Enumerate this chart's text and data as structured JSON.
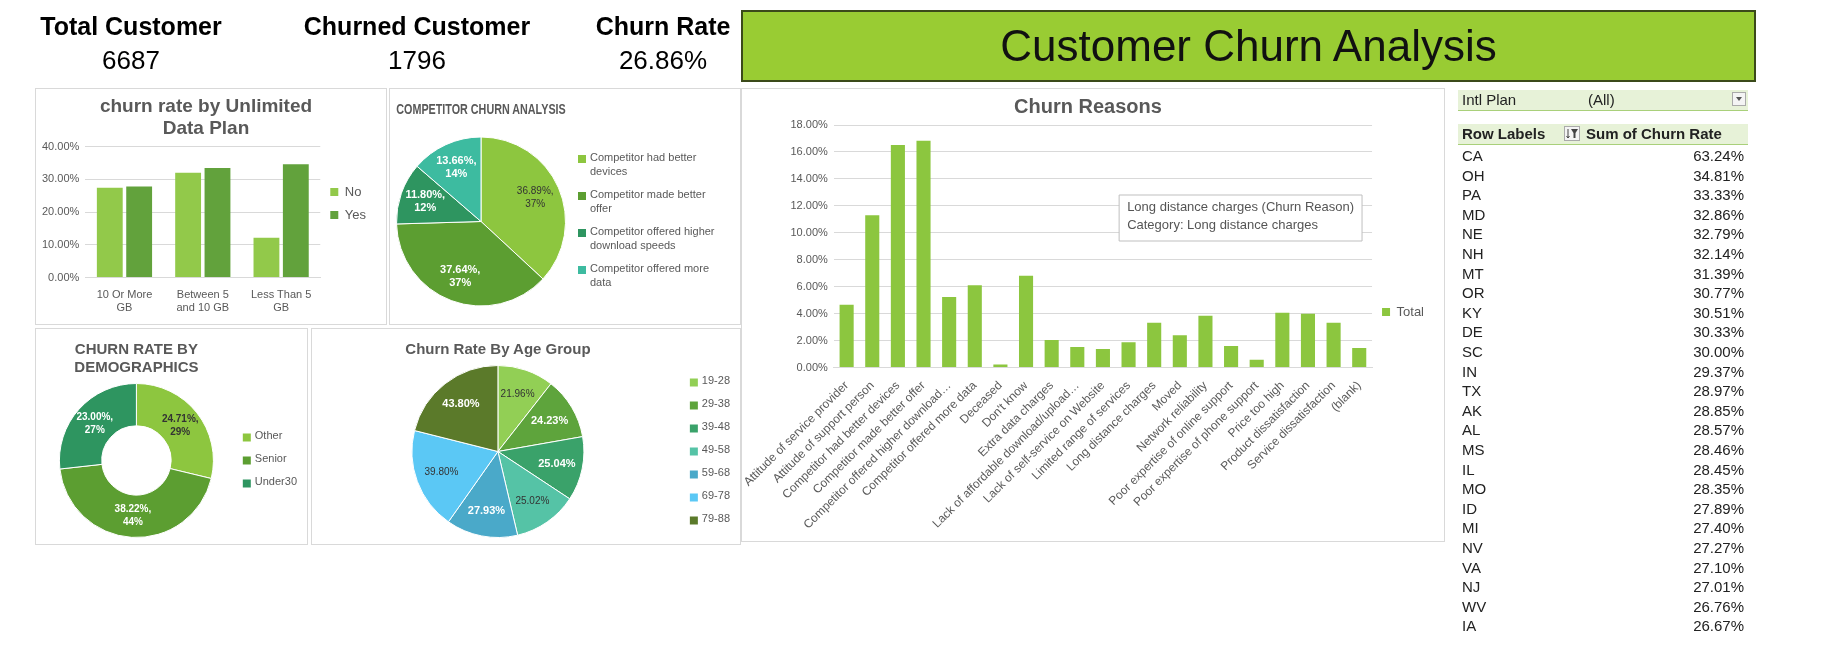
{
  "chart_data": [
    {
      "type": "other",
      "title": "Customer Churn Analysis",
      "annotations": [
        "Total Customer",
        "6687",
        "Churned Customer",
        "1796",
        "Churn Rate",
        "26.86%"
      ]
    },
    {
      "type": "bar",
      "title": "churn rate by Unlimited Data Plan",
      "categories": [
        "10 Or More GB",
        "Between 5 and 10 GB",
        "Less Than 5 GB"
      ],
      "series": [
        {
          "name": "No",
          "color": "#92c94a",
          "values": [
            27.4,
            32.0,
            12.2
          ]
        },
        {
          "name": "Yes",
          "color": "#62a23c",
          "values": [
            27.8,
            33.5,
            34.6
          ]
        }
      ],
      "ylim": [
        0,
        40
      ],
      "yticks": [
        {
          "value": 0,
          "label": "0.00%"
        },
        {
          "value": 10,
          "label": "10.00%"
        },
        {
          "value": 20,
          "label": "20.00%"
        },
        {
          "value": 30,
          "label": "30.00%"
        },
        {
          "value": 40,
          "label": "40.00%"
        }
      ],
      "grid": "y",
      "legend": "right"
    },
    {
      "type": "pie",
      "title": "COMPETITOR CHURN ANALYSIS",
      "categories": [
        "Competitor had better devices",
        "Competitor made better offer",
        "Competitor offered higher download speeds",
        "Competitor offered more data"
      ],
      "values": [
        36.89,
        37.64,
        11.8,
        13.66
      ],
      "colors": [
        "#8dc63f",
        "#5c9e31",
        "#2e9560",
        "#3dbba0"
      ],
      "value_labels": [
        "36.89%,\n37%",
        "37.64%,\n37%",
        "11.80%,\n12%",
        "13.66%,\n14%"
      ],
      "legend": "right"
    },
    {
      "type": "bar",
      "title": "Churn Reasons",
      "categories": [
        "Attitude of service provider",
        "Attitude of support person",
        "Competitor had better devices",
        "Competitor made better offer",
        "Competitor offered higher download…",
        "Competitor offered more data",
        "Deceased",
        "Don't know",
        "Extra data charges",
        "Lack of affordable download/upload…",
        "Lack of self-service on Website",
        "Limited range of services",
        "Long distance charges",
        "Moved",
        "Network reliability",
        "Poor expertise of online support",
        "Poor expertise of phone support",
        "Price too high",
        "Product dissatisfaction",
        "Service dissatisfaction",
        "(blank)"
      ],
      "series": [
        {
          "name": "Total",
          "color": "#8cc63f",
          "values": [
            4.66,
            11.31,
            16.52,
            16.83,
            5.24,
            6.1,
            0.23,
            6.81,
            2.04,
            1.53,
            1.37,
            1.88,
            3.33,
            2.39,
            3.84,
            1.6,
            0.59,
            4.07,
            3.99,
            3.33,
            1.45
          ]
        }
      ],
      "ylim": [
        0,
        18
      ],
      "yticks": [
        {
          "value": 0,
          "label": "0.00%"
        },
        {
          "value": 2,
          "label": "2.00%"
        },
        {
          "value": 4,
          "label": "4.00%"
        },
        {
          "value": 6,
          "label": "6.00%"
        },
        {
          "value": 8,
          "label": "8.00%"
        },
        {
          "value": 10,
          "label": "10.00%"
        },
        {
          "value": 12,
          "label": "12.00%"
        },
        {
          "value": 14,
          "label": "14.00%"
        },
        {
          "value": 16,
          "label": "16.00%"
        },
        {
          "value": 18,
          "label": "18.00%"
        }
      ],
      "grid": "y",
      "legend": "right",
      "annotations": [
        "Long distance charges (Churn Reason)",
        "Category: Long distance charges"
      ]
    },
    {
      "type": "other",
      "categories": [
        "CA",
        "OH",
        "PA",
        "MD",
        "NE",
        "NH",
        "MT",
        "OR",
        "KY",
        "DE",
        "SC",
        "IN",
        "TX",
        "AK",
        "AL",
        "MS",
        "IL",
        "MO",
        "ID",
        "MI",
        "NV",
        "VA",
        "NJ",
        "WV",
        "IA"
      ],
      "value_labels": [
        "63.24%",
        "34.81%",
        "33.33%",
        "32.86%",
        "32.79%",
        "32.14%",
        "31.39%",
        "30.77%",
        "30.51%",
        "30.33%",
        "30.00%",
        "29.37%",
        "28.97%",
        "28.85%",
        "28.57%",
        "28.46%",
        "28.45%",
        "28.35%",
        "27.89%",
        "27.40%",
        "27.27%",
        "27.10%",
        "27.01%",
        "26.76%",
        "26.67%"
      ],
      "annotations": [
        "Intl Plan",
        "(All)",
        "Row Labels",
        "Sum of Churn Rate"
      ]
    },
    {
      "type": "donut",
      "title": "CHURN RATE BY DEMOGRAPHICS",
      "categories": [
        "Other",
        "Senior",
        "Under30"
      ],
      "values": [
        24.71,
        38.22,
        23.0
      ],
      "colors": [
        "#8dc63f",
        "#5c9e31",
        "#2e9560"
      ],
      "value_labels": [
        "24.71%,\n29%",
        "38.22%,\n44%",
        "23.00%,\n27%"
      ],
      "legend": "right"
    },
    {
      "type": "pie",
      "title": "Churn Rate By Age Group",
      "categories": [
        "19-28",
        "29-38",
        "39-48",
        "49-58",
        "59-68",
        "69-78",
        "79-88"
      ],
      "values": [
        21.96,
        24.23,
        25.04,
        25.02,
        27.93,
        39.8,
        43.8
      ],
      "colors": [
        "#92cf55",
        "#5ea43c",
        "#3aa26a",
        "#55c3a6",
        "#4aa9c9",
        "#5bc8f5",
        "#5b7a2a"
      ],
      "value_labels": [
        "21.96%",
        "24.23%",
        "25.04%",
        "25.02%",
        "27.93%",
        "39.80%",
        "43.80%"
      ],
      "legend": "right"
    }
  ]
}
